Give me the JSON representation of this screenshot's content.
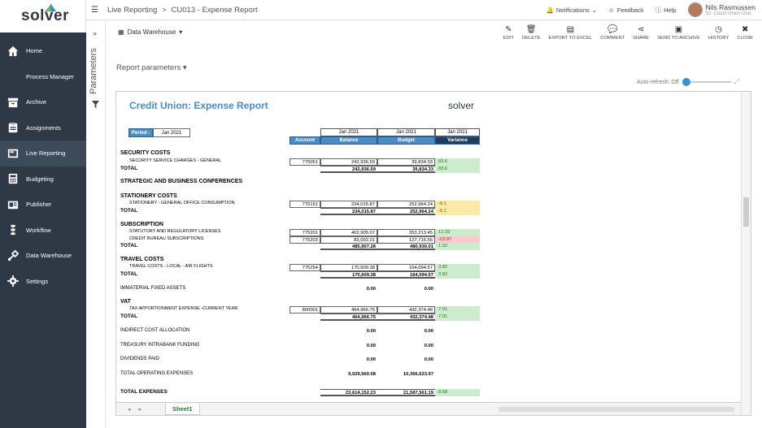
{
  "app": {
    "logo": "solver"
  },
  "sidebar": {
    "items": [
      {
        "label": "Home",
        "icon": "home-icon"
      },
      {
        "label": "Process Manager",
        "icon": ""
      },
      {
        "label": "Archive",
        "icon": "archive-icon"
      },
      {
        "label": "Assignments",
        "icon": "assignments-icon"
      },
      {
        "label": "Live Reporting",
        "icon": "live-reporting-icon",
        "active": true
      },
      {
        "label": "Budgeting",
        "icon": "calculator-icon"
      },
      {
        "label": "Publisher",
        "icon": "publisher-icon"
      },
      {
        "label": "Workflow",
        "icon": "workflow-icon"
      },
      {
        "label": "Data Warehouse",
        "icon": "data-warehouse-icon"
      },
      {
        "label": "Settings",
        "icon": "gear-icon"
      }
    ]
  },
  "topbar": {
    "crumb1": "Live Reporting",
    "crumb_sep": ">",
    "crumb2": "CU013 - Expense Report",
    "notifications": "Notifications",
    "feedback": "Feedback",
    "help": "Help",
    "user_name": "Nils Rasmussen",
    "user_org": "02: Coast Union Dsic"
  },
  "rail": {
    "label": "Parameters"
  },
  "main": {
    "data_warehouse": "Data Warehouse",
    "report_parameters": "Report parameters",
    "auto_refresh": "Auto-refresh: Off"
  },
  "toolbar": {
    "edit": "EDIT",
    "delete": "DELETE",
    "export": "EXPORT TO EXCEL",
    "comment": "COMMENT",
    "share": "SHARE",
    "send": "SEND TO ARCHIVE",
    "history": "HISTORY",
    "close": "CLOSE"
  },
  "report": {
    "title": "Credit Union: Expense Report",
    "logo": "solver",
    "period_label": "Period :",
    "period_value": "Jan 2021",
    "headers": {
      "top_balance": "Jan 2021",
      "top_budget": "Jan 2021",
      "top_variance": "Jan 2021",
      "account": "Account",
      "balance": "Balance",
      "budget": "Budget",
      "variance": "Variance"
    },
    "rows": [
      {
        "type": "section",
        "desc": "SECURITY COSTS"
      },
      {
        "type": "detail",
        "desc": "SECURITY SERVICE CHARGES - GENERAL",
        "acct": "775051",
        "bal": "242,936.59",
        "bud": "39,834.33",
        "var": "83.6",
        "color": "green"
      },
      {
        "type": "total",
        "desc": "TOTAL",
        "bal": "242,936.59",
        "bud": "39,834.33",
        "var": "83.6",
        "color": "green"
      },
      {
        "type": "section",
        "desc": "STRATEGIC AND BUSINESS CONFERENCES"
      },
      {
        "type": "section",
        "desc": "STATIONERY COSTS"
      },
      {
        "type": "detail",
        "desc": "STATIONERY - GENERAL OFFICE CONSUMPTION",
        "acct": "775151",
        "bal": "234,015.87",
        "bud": "252,964.24",
        "var": "-8.1",
        "color": "yellow"
      },
      {
        "type": "total",
        "desc": "TOTAL",
        "bal": "234,015.87",
        "bud": "252,964.24",
        "var": "-8.1",
        "color": "yellow"
      },
      {
        "type": "section",
        "desc": "SUBSCRIPTION"
      },
      {
        "type": "detail",
        "desc": "STATUTORY AND REGULATORY LICENSES",
        "acct": "775201",
        "bal": "402,905.07",
        "bud": "353,213.45",
        "var": "12.33",
        "color": "green"
      },
      {
        "type": "detail",
        "desc": "CREDIT BUREAU SUBSCRIPTIONS",
        "acct": "775203",
        "bal": "83,002.21",
        "bud": "127,716.56",
        "var": "-53.87",
        "color": "red"
      },
      {
        "type": "total",
        "desc": "TOTAL",
        "bal": "485,907.28",
        "bud": "480,930.01",
        "var": "1.02",
        "color": "green"
      },
      {
        "type": "section",
        "desc": "TRAVEL COSTS"
      },
      {
        "type": "detail",
        "desc": "TRAVEL COSTS - LOCAL - AIR FLIGHTS",
        "acct": "775254",
        "bal": "170,609.38",
        "bud": "164,094.57",
        "var": "3.82",
        "color": "green"
      },
      {
        "type": "total",
        "desc": "TOTAL",
        "bal": "170,609.38",
        "bud": "164,094.57",
        "var": "3.82",
        "color": "green"
      },
      {
        "type": "plain",
        "desc": "IMMATERIAL FIXED ASSETS",
        "bal": "0.00",
        "bud": "0.00"
      },
      {
        "type": "section",
        "desc": "VAT"
      },
      {
        "type": "detail",
        "desc": "TAX APPORTIONMENT EXPENSE -CURRENT YEAR",
        "acct": "800001",
        "bal": "464,966.75",
        "bud": "432,374.48",
        "var": "7.01",
        "color": "green"
      },
      {
        "type": "total",
        "desc": "TOTAL",
        "bal": "464,966.75",
        "bud": "432,374.48",
        "var": "7.01",
        "color": "green"
      },
      {
        "type": "plain",
        "desc": "INDIRECT COST ALLOCATION",
        "bal": "0.00",
        "bud": "0.00"
      },
      {
        "type": "plain",
        "desc": "TREASURY INTRABANK FUNDING",
        "bal": "0.00",
        "bud": "0.00"
      },
      {
        "type": "plain",
        "desc": "DIVIDENDS PAID",
        "bal": "0.00",
        "bud": "0.00"
      },
      {
        "type": "plain",
        "desc": "TOTAL OPERATING EXPENSES",
        "bal": "9,929,560.08",
        "bud": "10,356,623.97"
      },
      {
        "type": "total",
        "desc": "TOTAL EXPENSES",
        "bal": "23,614,152.23",
        "bud": "21,587,561.19",
        "var": "8.58",
        "color": "green"
      }
    ]
  },
  "tabs": {
    "nav": "◂ ▸",
    "sheet": "Sheet1"
  },
  "colors": {
    "sidebar": "#2e3945",
    "accent": "#4b8cc4",
    "positive": "#cdeccd",
    "warning": "#fbe9a8",
    "negative": "#f7cccc"
  }
}
